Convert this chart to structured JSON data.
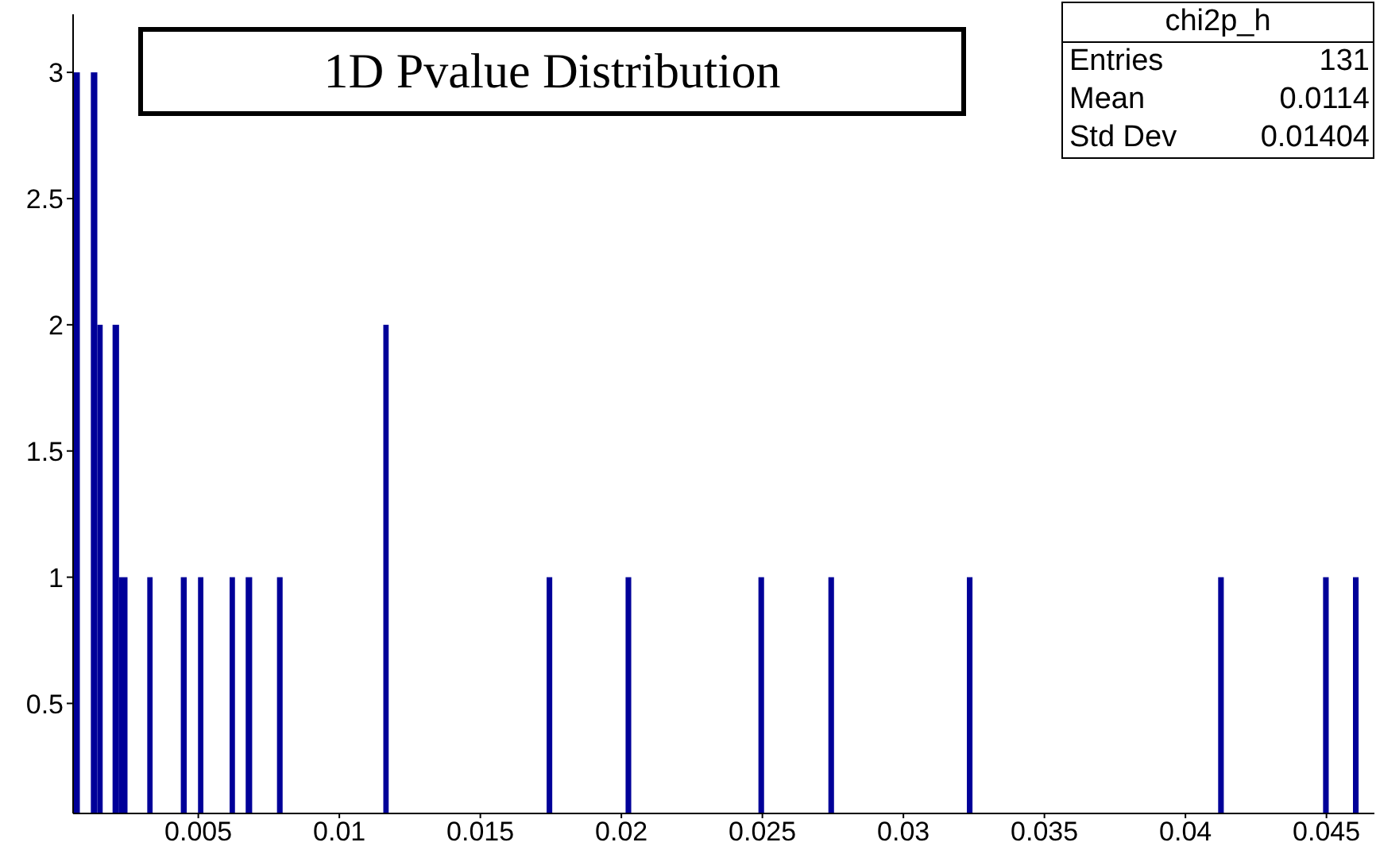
{
  "chart_data": {
    "type": "histogram",
    "title": "1D Pvalue Distribution",
    "bins": [
      0.00058,
      0.00081,
      0.0012,
      0.00143,
      0.00162,
      0.00197,
      0.0022,
      0.0025,
      0.0032,
      0.00339,
      0.00439,
      0.0046,
      0.005,
      0.00519,
      0.00612,
      0.00631,
      0.00669,
      0.00692,
      0.0078,
      0.008,
      0.01157,
      0.01176,
      0.01736,
      0.01756,
      0.02016,
      0.02036,
      0.02487,
      0.02507,
      0.02735,
      0.02755,
      0.03226,
      0.03246,
      0.04117,
      0.04137,
      0.04489,
      0.04509,
      0.04595,
      0.04615
    ],
    "values": [
      3,
      null,
      3,
      2,
      null,
      2,
      1,
      null,
      1,
      null,
      1,
      null,
      1,
      null,
      1,
      null,
      1,
      null,
      1,
      null,
      2,
      null,
      1,
      null,
      1,
      null,
      1,
      null,
      1,
      null,
      1,
      null,
      1,
      null,
      1,
      null,
      1
    ],
    "color": "#000099",
    "xlim": [
      0.00056,
      0.0467
    ],
    "xticks": [
      0.005,
      0.01,
      0.015,
      0.02,
      0.025,
      0.03,
      0.035,
      0.04,
      0.045
    ],
    "ylim": [
      0.064,
      3.23
    ],
    "yticks": [
      0.5,
      1,
      1.5,
      2,
      2.5,
      3
    ],
    "annotations": [
      "chi2p_h",
      "Entries",
      "131",
      "Mean",
      "0.0114",
      "Std Dev",
      "0.01404"
    ]
  }
}
